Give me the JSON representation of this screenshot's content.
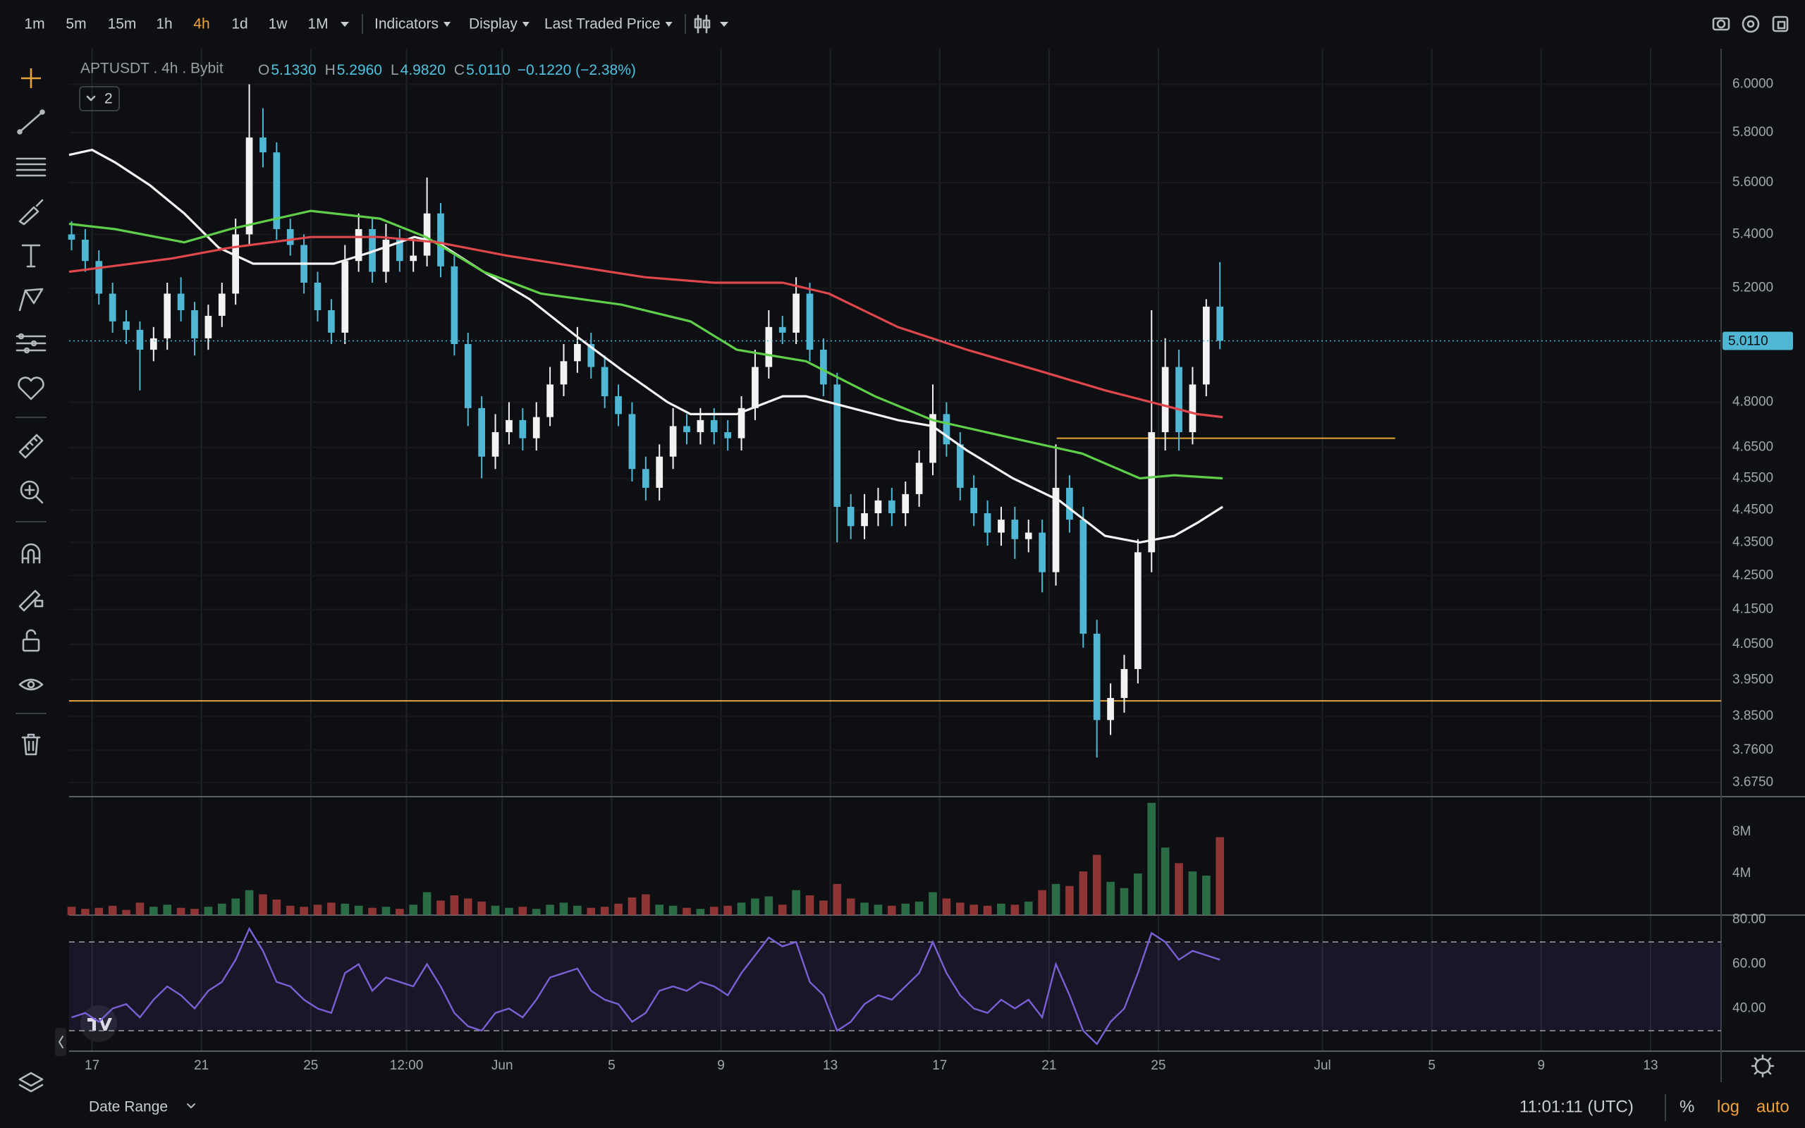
{
  "toolbar": {
    "intervals": [
      "1m",
      "5m",
      "15m",
      "1h",
      "4h",
      "1d",
      "1w",
      "1M"
    ],
    "active_interval": "4h",
    "menus": [
      "Indicators",
      "Display",
      "Last Traded Price"
    ]
  },
  "legend": {
    "symbol": "APTUSDT . 4h . Bybit",
    "ohlc": [
      {
        "key": "O",
        "value": "5.1330"
      },
      {
        "key": "H",
        "value": "5.2960"
      },
      {
        "key": "L",
        "value": "4.9820"
      },
      {
        "key": "C",
        "value": "5.0110"
      }
    ],
    "change": "−0.1220 (−2.38%)",
    "indicator_count": "2"
  },
  "footer": {
    "date_range": "Date Range",
    "clock": "11:01:11 (UTC)",
    "percent": "%",
    "log": "log",
    "auto": "auto"
  },
  "chart_data": [
    {
      "type": "candlestick",
      "log": true,
      "grid": true,
      "up_color": "#f2f2f2",
      "down_color": "#4fb7d4",
      "last_price_color": "#4fb7d4",
      "xlim": [
        16.16,
        76.58
      ],
      "xticks": [
        {
          "value": 17,
          "label": "17"
        },
        {
          "value": 21,
          "label": "21"
        },
        {
          "value": 25,
          "label": "25"
        },
        {
          "value": 28.5,
          "label": "12:00"
        },
        {
          "value": 32,
          "label": "Jun"
        },
        {
          "value": 36,
          "label": "5"
        },
        {
          "value": 40,
          "label": "9"
        },
        {
          "value": 44,
          "label": "13"
        },
        {
          "value": 48,
          "label": "17"
        },
        {
          "value": 52,
          "label": "21"
        },
        {
          "value": 56,
          "label": "25"
        },
        {
          "value": 62,
          "label": "Jul"
        },
        {
          "value": 66,
          "label": "5"
        },
        {
          "value": 70,
          "label": "9"
        },
        {
          "value": 74,
          "label": "13"
        }
      ],
      "ylim": [
        3.639,
        6.152
      ],
      "yticks": [
        {
          "value": 6,
          "label": "6.0000"
        },
        {
          "value": 5.8,
          "label": "5.8000"
        },
        {
          "value": 5.6,
          "label": "5.6000"
        },
        {
          "value": 5.4,
          "label": "5.4000"
        },
        {
          "value": 5.2,
          "label": "5.2000"
        },
        {
          "value": 4.8,
          "label": "4.8000"
        },
        {
          "value": 4.65,
          "label": "4.6500"
        },
        {
          "value": 4.55,
          "label": "4.5500"
        },
        {
          "value": 4.45,
          "label": "4.4500"
        },
        {
          "value": 4.35,
          "label": "4.3500"
        },
        {
          "value": 4.25,
          "label": "4.2500"
        },
        {
          "value": 4.15,
          "label": "4.1500"
        },
        {
          "value": 4.05,
          "label": "4.0500"
        },
        {
          "value": 3.95,
          "label": "3.9500"
        },
        {
          "value": 3.85,
          "label": "3.8500"
        },
        {
          "value": 3.76,
          "label": "3.7600"
        },
        {
          "value": 3.675,
          "label": "3.6750"
        }
      ],
      "x": [
        16.25,
        16.75,
        17.25,
        17.75,
        18.25,
        18.75,
        19.25,
        19.75,
        20.25,
        20.75,
        21.25,
        21.75,
        22.25,
        22.75,
        23.25,
        23.75,
        24.25,
        24.75,
        25.25,
        25.75,
        26.25,
        26.75,
        27.25,
        27.75,
        28.25,
        28.75,
        29.25,
        29.75,
        30.25,
        30.75,
        31.25,
        31.75,
        32.25,
        32.75,
        33.25,
        33.75,
        34.25,
        34.75,
        35.25,
        35.75,
        36.25,
        36.75,
        37.25,
        37.75,
        38.25,
        38.75,
        39.25,
        39.75,
        40.25,
        40.75,
        41.25,
        41.75,
        42.25,
        42.75,
        43.25,
        43.75,
        44.25,
        44.75,
        45.25,
        45.75,
        46.25,
        46.75,
        47.25,
        47.75,
        48.25,
        48.75,
        49.25,
        49.75,
        50.25,
        50.75,
        51.25,
        51.75,
        52.25,
        52.75,
        53.25,
        53.75,
        54.25,
        54.75,
        55.25,
        55.75,
        56.25,
        56.75,
        57.25,
        57.75,
        58.25
      ],
      "open": [
        5.4,
        5.38,
        5.3,
        5.18,
        5.08,
        5.05,
        4.98,
        5.02,
        5.18,
        5.12,
        5.02,
        5.1,
        5.18,
        5.4,
        5.78,
        5.72,
        5.42,
        5.36,
        5.22,
        5.12,
        5.04,
        5.3,
        5.42,
        5.26,
        5.38,
        5.3,
        5.32,
        5.48,
        5.28,
        5.0,
        4.78,
        4.62,
        4.7,
        4.74,
        4.68,
        4.75,
        4.86,
        4.94,
        5.0,
        4.92,
        4.82,
        4.76,
        4.58,
        4.52,
        4.62,
        4.72,
        4.7,
        4.74,
        4.7,
        4.68,
        4.78,
        4.92,
        5.06,
        5.04,
        5.18,
        4.98,
        4.86,
        4.46,
        4.4,
        4.44,
        4.48,
        4.44,
        4.5,
        4.6,
        4.76,
        4.66,
        4.52,
        4.44,
        4.38,
        4.42,
        4.36,
        4.38,
        4.26,
        4.52,
        4.42,
        4.08,
        3.84,
        3.9,
        3.98,
        4.32,
        4.7,
        4.92,
        4.7,
        4.86,
        5.133
      ],
      "high": [
        5.45,
        5.42,
        5.34,
        5.22,
        5.12,
        5.08,
        5.06,
        5.22,
        5.24,
        5.15,
        5.14,
        5.22,
        5.46,
        6.0,
        5.9,
        5.76,
        5.46,
        5.4,
        5.26,
        5.16,
        5.36,
        5.48,
        5.46,
        5.44,
        5.42,
        5.38,
        5.62,
        5.52,
        5.32,
        5.04,
        4.82,
        4.76,
        4.8,
        4.78,
        4.8,
        4.92,
        5.0,
        5.06,
        5.04,
        4.96,
        4.86,
        4.8,
        4.62,
        4.66,
        4.78,
        4.76,
        4.78,
        4.78,
        4.74,
        4.82,
        4.98,
        5.12,
        5.1,
        5.24,
        5.22,
        5.02,
        4.9,
        4.5,
        4.5,
        4.52,
        4.52,
        4.54,
        4.64,
        4.86,
        4.8,
        4.7,
        4.56,
        4.48,
        4.46,
        4.46,
        4.42,
        4.42,
        4.66,
        4.56,
        4.46,
        4.12,
        3.94,
        4.02,
        4.36,
        5.12,
        5.02,
        4.98,
        4.92,
        5.16,
        5.296
      ],
      "low": [
        5.34,
        5.26,
        5.14,
        5.04,
        5.0,
        4.84,
        4.94,
        4.98,
        5.08,
        4.96,
        4.98,
        5.06,
        5.14,
        5.36,
        5.66,
        5.38,
        5.32,
        5.18,
        5.08,
        5.0,
        5.0,
        5.26,
        5.22,
        5.22,
        5.26,
        5.26,
        5.28,
        5.24,
        4.96,
        4.72,
        4.55,
        4.58,
        4.66,
        4.64,
        4.64,
        4.72,
        4.82,
        4.9,
        4.88,
        4.78,
        4.72,
        4.54,
        4.48,
        4.48,
        4.58,
        4.66,
        4.66,
        4.66,
        4.64,
        4.64,
        4.74,
        4.88,
        5.0,
        5.0,
        4.94,
        4.82,
        4.35,
        4.36,
        4.36,
        4.4,
        4.4,
        4.4,
        4.46,
        4.56,
        4.62,
        4.48,
        4.4,
        4.34,
        4.34,
        4.3,
        4.32,
        4.2,
        4.22,
        4.38,
        4.04,
        3.74,
        3.8,
        3.86,
        3.94,
        4.26,
        4.64,
        4.64,
        4.66,
        4.82,
        4.982
      ],
      "close": [
        5.38,
        5.3,
        5.18,
        5.08,
        5.05,
        4.98,
        5.02,
        5.18,
        5.12,
        5.02,
        5.1,
        5.18,
        5.4,
        5.78,
        5.72,
        5.42,
        5.36,
        5.22,
        5.12,
        5.04,
        5.3,
        5.42,
        5.26,
        5.38,
        5.3,
        5.32,
        5.48,
        5.28,
        5.0,
        4.78,
        4.62,
        4.7,
        4.74,
        4.68,
        4.75,
        4.86,
        4.94,
        5.0,
        4.92,
        4.82,
        4.76,
        4.58,
        4.52,
        4.62,
        4.72,
        4.7,
        4.74,
        4.7,
        4.68,
        4.78,
        4.92,
        5.06,
        5.04,
        5.18,
        4.98,
        4.86,
        4.46,
        4.4,
        4.44,
        4.48,
        4.44,
        4.5,
        4.6,
        4.76,
        4.66,
        4.52,
        4.44,
        4.38,
        4.42,
        4.36,
        4.38,
        4.26,
        4.52,
        4.42,
        4.08,
        3.84,
        3.9,
        3.98,
        4.32,
        4.7,
        4.92,
        4.7,
        4.86,
        5.133,
        5.011
      ],
      "lines": [
        {
          "color": "#f4f4f4",
          "x": [
            16.16,
            17,
            17.84,
            19.11,
            20.37,
            21.63,
            22.89,
            24.58,
            25.84,
            27.11,
            28.79,
            29.63,
            31.32,
            33.0,
            34.68,
            36.37,
            38.05,
            38.89,
            40.58,
            42.26,
            43.11,
            44.79,
            46.47,
            47.74,
            49.0,
            50.68,
            52.37,
            54.05,
            55.32,
            56.58,
            57.42,
            58.35
          ],
          "values": [
            5.71,
            5.73,
            5.68,
            5.59,
            5.48,
            5.35,
            5.29,
            5.29,
            5.29,
            5.33,
            5.39,
            5.37,
            5.26,
            5.16,
            5.03,
            4.91,
            4.8,
            4.76,
            4.76,
            4.82,
            4.82,
            4.78,
            4.74,
            4.72,
            4.64,
            4.55,
            4.48,
            4.37,
            4.35,
            4.37,
            4.41,
            4.46
          ]
        },
        {
          "color": "#5fcf4a",
          "x": [
            16.16,
            17.84,
            20.37,
            22.05,
            25.0,
            27.53,
            29.21,
            31.32,
            33.42,
            36.37,
            38.89,
            40.58,
            43.11,
            45.63,
            47.74,
            50.68,
            53.21,
            55.32,
            56.58,
            58.35
          ],
          "values": [
            5.44,
            5.42,
            5.37,
            5.42,
            5.49,
            5.46,
            5.39,
            5.26,
            5.18,
            5.14,
            5.08,
            4.98,
            4.94,
            4.82,
            4.74,
            4.68,
            4.63,
            4.55,
            4.56,
            4.55
          ]
        },
        {
          "color": "#e0474c",
          "x": [
            16.16,
            19.95,
            22.05,
            25.0,
            27.53,
            29.63,
            32.16,
            34.68,
            37.21,
            39.74,
            42.26,
            43.95,
            46.47,
            49.0,
            51.53,
            54.05,
            55.74,
            57.42,
            58.35
          ],
          "values": [
            5.26,
            5.31,
            5.35,
            5.39,
            5.39,
            5.37,
            5.32,
            5.28,
            5.24,
            5.22,
            5.22,
            5.18,
            5.06,
            4.98,
            4.91,
            4.84,
            4.8,
            4.76,
            4.75
          ]
        }
      ],
      "levels": [
        {
          "value": 3.892,
          "color": "#e8a33a"
        },
        {
          "value": 4.68,
          "x": [
            52.28,
            64.66
          ],
          "color": "#e8a33a"
        }
      ]
    },
    {
      "type": "volume",
      "up_color": "#2f7d4f",
      "down_color": "#a43c3c",
      "ylim": [
        0,
        11400000
      ],
      "yticks": [
        {
          "value": 4000000,
          "label": "4M"
        },
        {
          "value": 8000000,
          "label": "8M"
        }
      ],
      "values": [
        800000,
        600000,
        700000,
        900000,
        500000,
        1200000,
        800000,
        1000000,
        700000,
        600000,
        800000,
        1100000,
        1600000,
        2400000,
        2000000,
        1500000,
        900000,
        800000,
        1000000,
        1200000,
        1100000,
        900000,
        700000,
        800000,
        600000,
        1000000,
        2200000,
        1400000,
        1900000,
        1600000,
        1300000,
        900000,
        700000,
        800000,
        600000,
        1000000,
        1200000,
        900000,
        700000,
        800000,
        1100000,
        1700000,
        2000000,
        1000000,
        900000,
        700000,
        600000,
        800000,
        900000,
        1200000,
        1600000,
        1800000,
        1000000,
        2400000,
        1900000,
        1400000,
        3000000,
        1600000,
        1200000,
        1000000,
        900000,
        1100000,
        1300000,
        2200000,
        1600000,
        1200000,
        1000000,
        900000,
        1100000,
        1000000,
        1300000,
        2400000,
        3000000,
        2800000,
        4200000,
        5800000,
        3200000,
        2600000,
        4000000,
        10800000,
        6500000,
        5000000,
        4200000,
        3800000,
        7500000
      ]
    },
    {
      "type": "rsi",
      "color": "#7b5fd6",
      "band_color": "#7b5fd6",
      "bands": [
        30,
        70
      ],
      "ylim": [
        20.8,
        82.1
      ],
      "yticks": [
        {
          "value": 80,
          "label": "80.00"
        },
        {
          "value": 60,
          "label": "60.00"
        },
        {
          "value": 40,
          "label": "40.00"
        }
      ],
      "values": [
        36,
        38,
        34,
        40,
        42,
        36,
        44,
        50,
        46,
        40,
        48,
        52,
        62,
        76,
        66,
        52,
        50,
        44,
        40,
        38,
        56,
        60,
        48,
        54,
        52,
        50,
        60,
        50,
        38,
        32,
        30,
        38,
        40,
        36,
        44,
        54,
        56,
        58,
        48,
        44,
        42,
        34,
        38,
        48,
        50,
        48,
        52,
        50,
        46,
        56,
        64,
        72,
        68,
        70,
        52,
        46,
        30,
        34,
        42,
        46,
        44,
        50,
        56,
        70,
        56,
        46,
        40,
        38,
        44,
        40,
        44,
        36,
        60,
        46,
        30,
        24,
        34,
        40,
        56,
        74,
        70,
        62,
        66,
        64,
        62
      ]
    }
  ]
}
